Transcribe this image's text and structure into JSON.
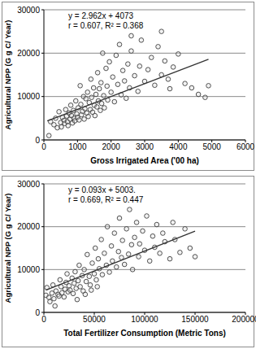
{
  "chart_data": [
    {
      "type": "scatter",
      "x_label": "Gross Irrigated Area ('00 ha)",
      "y_label": "Agricultural NPP (G g C/ Year)",
      "annotations": [
        "y = 2.962x + 4073",
        "r = 0.607, R² = 0.368"
      ],
      "xlim": [
        0,
        6000
      ],
      "xticks": [
        0,
        1000,
        2000,
        3000,
        4000,
        5000,
        6000
      ],
      "ylim": [
        0,
        30000
      ],
      "yticks": [
        0,
        10000,
        20000,
        30000
      ],
      "grid": true,
      "marker": "circle",
      "color": "#404040",
      "x": [
        150,
        200,
        300,
        350,
        400,
        450,
        500,
        520,
        550,
        600,
        620,
        650,
        680,
        700,
        720,
        750,
        780,
        800,
        820,
        850,
        880,
        900,
        920,
        950,
        980,
        1000,
        1020,
        1050,
        1080,
        1100,
        1120,
        1150,
        1180,
        1200,
        1220,
        1250,
        1280,
        1300,
        1320,
        1350,
        1380,
        1400,
        1420,
        1450,
        1480,
        1500,
        1520,
        1550,
        1580,
        1600,
        1620,
        1650,
        1680,
        1700,
        1720,
        1750,
        1780,
        1800,
        1850,
        1880,
        1900,
        1950,
        2000,
        2050,
        2100,
        2150,
        2200,
        2250,
        2300,
        2350,
        2400,
        2450,
        2500,
        2550,
        2600,
        2700,
        2800,
        2850,
        2900,
        3000,
        3100,
        3200,
        3300,
        3400,
        3500,
        3600,
        3700,
        3750,
        3850,
        4000,
        4200,
        4400,
        4600,
        4800,
        4900,
        3500,
        2600
      ],
      "values": [
        1000,
        4200,
        3500,
        5000,
        2800,
        6500,
        4000,
        3000,
        5200,
        4500,
        3800,
        7000,
        5500,
        4200,
        3300,
        6200,
        4800,
        8000,
        5600,
        3900,
        6800,
        5000,
        4400,
        9000,
        6000,
        5200,
        7400,
        4600,
        12500,
        8200,
        5800,
        6600,
        10000,
        4800,
        7200,
        9500,
        6200,
        11000,
        5400,
        8600,
        7000,
        14000,
        9800,
        6400,
        12000,
        8000,
        5600,
        10500,
        7600,
        15500,
        9000,
        11800,
        6800,
        13200,
        8400,
        20000,
        10200,
        7400,
        16500,
        12400,
        9200,
        18000,
        11000,
        14500,
        8800,
        19500,
        12800,
        22000,
        10400,
        16000,
        13600,
        9600,
        17500,
        12000,
        20500,
        14800,
        11200,
        17000,
        23000,
        13500,
        16200,
        19000,
        12600,
        21500,
        15000,
        18200,
        14000,
        11800,
        16800,
        19800,
        13000,
        12000,
        10500,
        9800,
        12500,
        25000,
        24000
      ],
      "trendline": {
        "x": [
          100,
          4900
        ],
        "values": [
          4369,
          18587
        ]
      }
    },
    {
      "type": "scatter",
      "x_label": "Total Fertilizer Consumption (Metric Tons)",
      "y_label": "Agricultural NPP (G g C/ Year)",
      "annotations": [
        "y = 0.093x + 5003.",
        "r = 0.669, R² = 0.447"
      ],
      "xlim": [
        0,
        200000
      ],
      "xticks": [
        0,
        50000,
        100000,
        150000,
        200000
      ],
      "ylim": [
        0,
        30000
      ],
      "yticks": [
        0,
        10000,
        20000,
        30000
      ],
      "grid": true,
      "marker": "circle",
      "color": "#404040",
      "x": [
        2000,
        5000,
        8000,
        10000,
        12000,
        14000,
        15000,
        17000,
        18000,
        20000,
        21000,
        22000,
        24000,
        25000,
        26000,
        28000,
        29000,
        30000,
        31000,
        32000,
        34000,
        35000,
        36000,
        38000,
        39000,
        40000,
        42000,
        43000,
        45000,
        46000,
        48000,
        50000,
        51000,
        52000,
        54000,
        55000,
        57000,
        58000,
        60000,
        62000,
        63000,
        65000,
        67000,
        68000,
        70000,
        72000,
        74000,
        75000,
        77000,
        78000,
        80000,
        82000,
        84000,
        85000,
        87000,
        88000,
        90000,
        92000,
        94000,
        95000,
        98000,
        100000,
        102000,
        105000,
        108000,
        110000,
        112000,
        115000,
        118000,
        120000,
        125000,
        128000,
        130000,
        135000,
        140000,
        145000,
        150000,
        3000,
        6000,
        9000,
        11000,
        16000,
        23000,
        33000,
        41000,
        47000,
        53000
      ],
      "values": [
        4000,
        3500,
        4500,
        3200,
        5000,
        4200,
        3800,
        6000,
        4600,
        3600,
        5400,
        7000,
        4800,
        6200,
        5200,
        8000,
        4400,
        6800,
        9500,
        5600,
        7400,
        11000,
        6000,
        8600,
        5000,
        10000,
        7200,
        13500,
        8400,
        6400,
        11500,
        9000,
        15000,
        7600,
        12500,
        10200,
        17000,
        8800,
        13800,
        11000,
        20000,
        9400,
        15500,
        12000,
        18500,
        10600,
        14200,
        22000,
        12800,
        16800,
        11200,
        19500,
        13600,
        24000,
        15800,
        10000,
        17500,
        21000,
        13000,
        16000,
        19000,
        14500,
        22500,
        12000,
        17800,
        15200,
        20500,
        13800,
        18500,
        16500,
        12500,
        21000,
        17000,
        14000,
        19500,
        15000,
        13000,
        5800,
        2500,
        6400,
        1500,
        7600,
        9000,
        3000,
        4200,
        5200,
        6000
      ],
      "trendline": {
        "x": [
          2000,
          150000
        ],
        "values": [
          5189,
          18953
        ]
      }
    }
  ]
}
